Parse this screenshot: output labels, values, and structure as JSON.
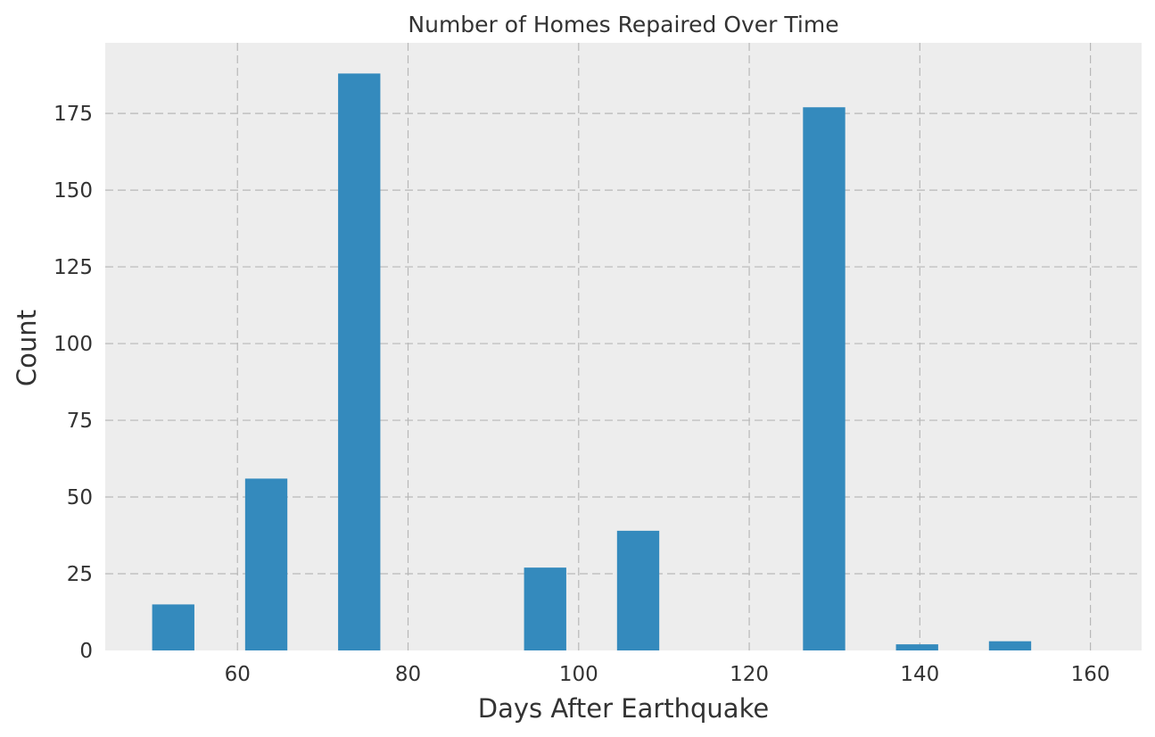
{
  "chart_data": {
    "type": "bar",
    "title": "Number of Homes Repaired Over Time",
    "xlabel": "Days After Earthquake",
    "ylabel": "Count",
    "xlim": [
      44.5,
      166
    ],
    "ylim": [
      0,
      198
    ],
    "grid": true,
    "xticks": [
      60,
      80,
      100,
      120,
      140,
      160
    ],
    "yticks": [
      0,
      25,
      50,
      75,
      100,
      125,
      150,
      175
    ],
    "bar_color": "#348ABD",
    "background_color": "#EDEDED",
    "series": [
      {
        "values": [
          {
            "x_start": 50.0,
            "x_end": 54.95,
            "count": 15
          },
          {
            "x_start": 60.9,
            "x_end": 65.85,
            "count": 56
          },
          {
            "x_start": 71.8,
            "x_end": 76.75,
            "count": 188
          },
          {
            "x_start": 93.6,
            "x_end": 98.55,
            "count": 27
          },
          {
            "x_start": 104.5,
            "x_end": 109.45,
            "count": 39
          },
          {
            "x_start": 126.3,
            "x_end": 131.25,
            "count": 177
          },
          {
            "x_start": 137.2,
            "x_end": 142.15,
            "count": 2
          },
          {
            "x_start": 148.1,
            "x_end": 153.05,
            "count": 3
          }
        ]
      }
    ]
  }
}
